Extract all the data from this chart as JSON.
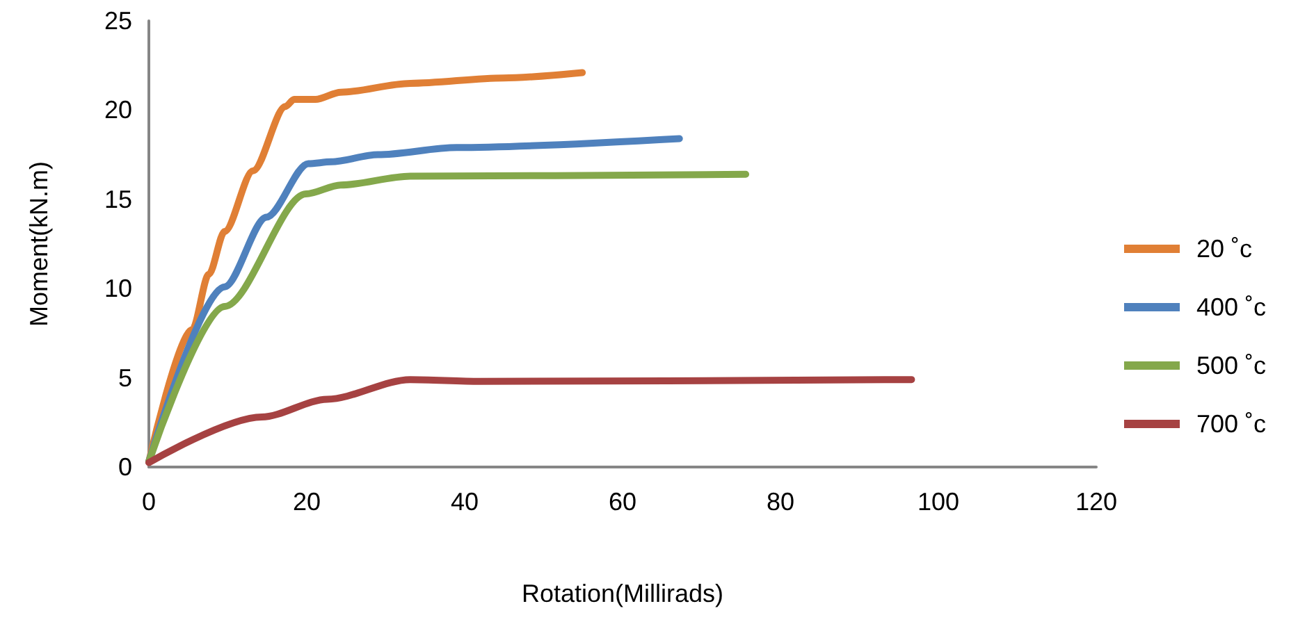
{
  "chart_data": {
    "type": "line",
    "xlabel": "Rotation(Millirads)",
    "ylabel": "Moment(kN.m)",
    "xlim": [
      0,
      120
    ],
    "xticks": [
      0,
      20,
      40,
      60,
      80,
      100,
      120
    ],
    "ylim": [
      0,
      25
    ],
    "yticks": [
      0,
      5,
      10,
      15,
      20,
      25
    ],
    "grid": false,
    "legend": "right",
    "marker": "none",
    "line_style": "solid",
    "series": [
      {
        "name": "20 ˚c",
        "color": "#e07f35",
        "x": [
          0,
          5.5,
          7.6,
          9.6,
          13.2,
          17.3,
          18.4,
          21.1,
          24.3,
          33.1,
          44.9,
          54.9
        ],
        "values": [
          0.3,
          7.7,
          10.8,
          13.2,
          16.6,
          20.2,
          20.6,
          20.6,
          21.0,
          21.5,
          21.8,
          22.1
        ]
      },
      {
        "name": "400 ˚c",
        "color": "#4f81bd",
        "x": [
          0,
          9.6,
          14.9,
          20.2,
          23.1,
          29.0,
          39.0,
          67.2
        ],
        "values": [
          0.3,
          10.1,
          14.0,
          17.0,
          17.1,
          17.5,
          17.9,
          18.4
        ]
      },
      {
        "name": "500 ˚c",
        "color": "#84a84b",
        "x": [
          0,
          9.6,
          19.9,
          24.3,
          33.1,
          75.6
        ],
        "values": [
          0.3,
          9.0,
          15.3,
          15.8,
          16.3,
          16.4
        ]
      },
      {
        "name": "700 ˚c",
        "color": "#a64242",
        "x": [
          0,
          14.3,
          22.6,
          33.1,
          41.9,
          96.6
        ],
        "values": [
          0.25,
          2.8,
          3.8,
          4.9,
          4.8,
          4.9
        ]
      }
    ]
  }
}
